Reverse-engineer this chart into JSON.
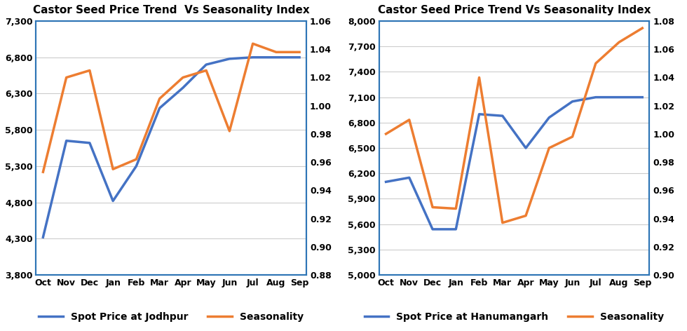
{
  "months": [
    "Oct",
    "Nov",
    "Dec",
    "Jan",
    "Feb",
    "Mar",
    "Apr",
    "May",
    "Jun",
    "Jul",
    "Aug",
    "Sep"
  ],
  "jodhpur": {
    "title": "Castor Seed Price Trend  Vs Seasonality Index",
    "spot_price": [
      4320,
      5650,
      5620,
      4820,
      5300,
      6100,
      6380,
      6700,
      6780,
      6800,
      6800,
      6800
    ],
    "seasonality": [
      0.953,
      1.02,
      1.025,
      0.955,
      0.962,
      1.005,
      1.02,
      1.025,
      0.982,
      1.044,
      1.038,
      1.038
    ],
    "spot_color": "#4472C4",
    "season_color": "#ED7D31",
    "ylim_left": [
      3800,
      7300
    ],
    "ylim_right": [
      0.88,
      1.06
    ],
    "yticks_left": [
      3800,
      4300,
      4800,
      5300,
      5800,
      6300,
      6800,
      7300
    ],
    "yticks_right": [
      0.88,
      0.9,
      0.92,
      0.94,
      0.96,
      0.98,
      1.0,
      1.02,
      1.04,
      1.06
    ],
    "spot_label": "Spot Price at Jodhpur",
    "season_label": "Seasonality"
  },
  "hanumangarh": {
    "title": "Castor Seed Price Trend Vs Seasonality Index",
    "spot_price": [
      6100,
      6150,
      5540,
      5540,
      6900,
      6880,
      6500,
      6860,
      7050,
      7100,
      7100,
      7100
    ],
    "seasonality": [
      1.0,
      1.01,
      0.948,
      0.947,
      1.04,
      0.937,
      0.942,
      0.99,
      0.998,
      1.05,
      1.065,
      1.075
    ],
    "spot_color": "#4472C4",
    "season_color": "#ED7D31",
    "ylim_left": [
      5000,
      8000
    ],
    "ylim_right": [
      0.9,
      1.08
    ],
    "yticks_left": [
      5000,
      5300,
      5600,
      5900,
      6200,
      6500,
      6800,
      7100,
      7400,
      7700,
      8000
    ],
    "yticks_right": [
      0.9,
      0.92,
      0.94,
      0.96,
      0.98,
      1.0,
      1.02,
      1.04,
      1.06,
      1.08
    ],
    "spot_label": "Spot Price at Hanumangarh",
    "season_label": "Seasonality"
  },
  "background_color": "#FFFFFF",
  "border_color": "#2E75B6",
  "grid_color": "#CCCCCC",
  "line_width": 2.5,
  "title_fontsize": 11,
  "tick_fontsize": 9,
  "legend_fontsize": 10
}
